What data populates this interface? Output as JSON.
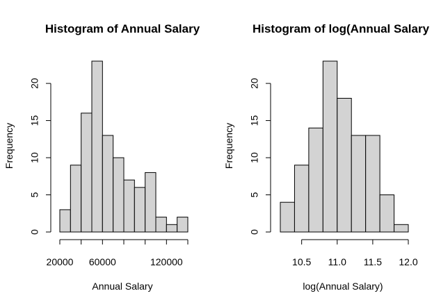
{
  "chart_data": [
    {
      "type": "bar",
      "title": "Histogram of Annual Salary",
      "xlabel": "Annual Salary",
      "ylabel": "Frequency",
      "bins": [
        [
          20000,
          30000
        ],
        [
          30000,
          40000
        ],
        [
          40000,
          50000
        ],
        [
          50000,
          60000
        ],
        [
          60000,
          70000
        ],
        [
          70000,
          80000
        ],
        [
          80000,
          90000
        ],
        [
          90000,
          100000
        ],
        [
          100000,
          110000
        ],
        [
          110000,
          120000
        ],
        [
          120000,
          130000
        ],
        [
          130000,
          140000
        ]
      ],
      "values": [
        3,
        9,
        16,
        23,
        13,
        10,
        7,
        6,
        8,
        2,
        1,
        2
      ],
      "xlim": [
        20000,
        140000
      ],
      "xticks": [
        20000,
        40000,
        60000,
        80000,
        100000,
        120000,
        140000
      ],
      "xtick_labels": [
        "20000",
        "",
        "60000",
        "",
        "",
        "120000",
        ""
      ],
      "ylim": [
        0,
        23
      ],
      "yticks": [
        0,
        5,
        10,
        15,
        20
      ],
      "ytick_labels": [
        "0",
        "5",
        "10",
        "15",
        "20"
      ],
      "grid": false,
      "bar_color": "#d3d3d3"
    },
    {
      "type": "bar",
      "title": "Histogram of log(Annual Salary",
      "xlabel": "log(Annual Salary)",
      "ylabel": "Frequency",
      "bins": [
        [
          10.2,
          10.4
        ],
        [
          10.4,
          10.6
        ],
        [
          10.6,
          10.8
        ],
        [
          10.8,
          11.0
        ],
        [
          11.0,
          11.2
        ],
        [
          11.2,
          11.4
        ],
        [
          11.4,
          11.6
        ],
        [
          11.6,
          11.8
        ],
        [
          11.8,
          12.0
        ]
      ],
      "values": [
        4,
        9,
        14,
        23,
        18,
        13,
        13,
        5,
        1
      ],
      "xlim": [
        10.2,
        12.0
      ],
      "xticks": [
        10.5,
        11.0,
        11.5,
        12.0
      ],
      "xtick_labels": [
        "10.5",
        "11.0",
        "11.5",
        "12.0"
      ],
      "ylim": [
        0,
        23
      ],
      "yticks": [
        0,
        5,
        10,
        15,
        20
      ],
      "ytick_labels": [
        "0",
        "5",
        "10",
        "15",
        "20"
      ],
      "grid": false,
      "bar_color": "#d3d3d3"
    }
  ]
}
